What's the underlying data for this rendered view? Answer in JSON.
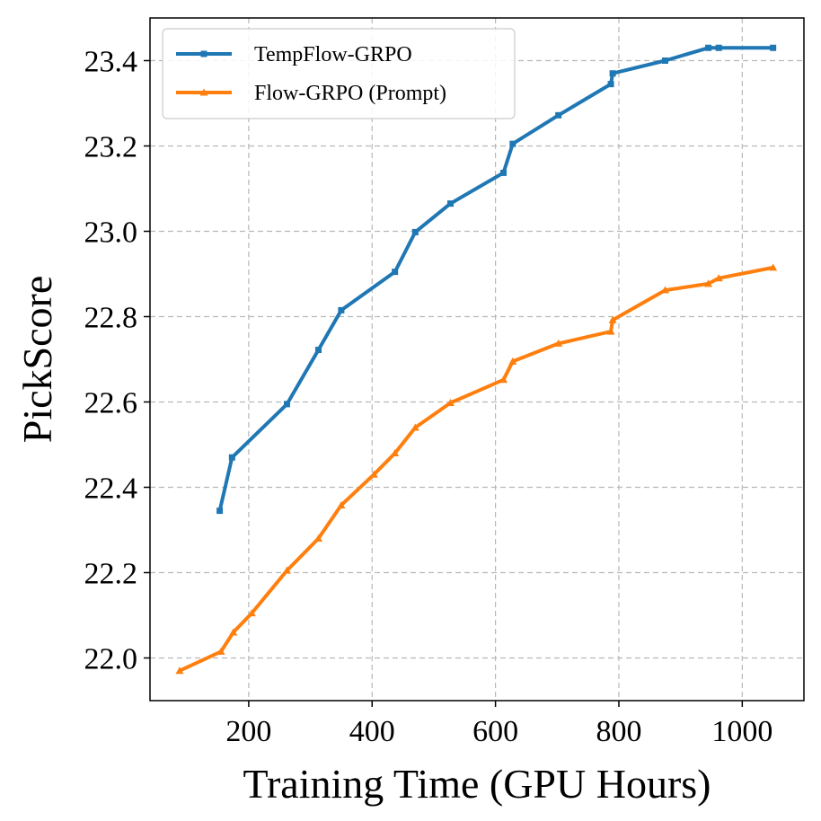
{
  "chart_data": {
    "type": "line",
    "title": "",
    "xlabel": "Training Time (GPU Hours)",
    "ylabel": "PickScore",
    "xlim": [
      40,
      1100
    ],
    "ylim": [
      21.9,
      23.5
    ],
    "xticks": [
      200,
      400,
      600,
      800,
      1000
    ],
    "yticks": [
      22.0,
      22.2,
      22.4,
      22.6,
      22.8,
      23.0,
      23.2,
      23.4
    ],
    "xtick_labels": [
      "200",
      "400",
      "600",
      "800",
      "1000"
    ],
    "ytick_labels": [
      "22.0",
      "22.2",
      "22.4",
      "22.6",
      "22.8",
      "23.0",
      "23.2",
      "23.4"
    ],
    "grid": true,
    "legend_position": "top-left",
    "series": [
      {
        "name": "TempFlow-GRPO",
        "color": "#1f77b4",
        "marker": "square",
        "x": [
          153,
          173,
          262,
          313,
          350,
          437,
          470,
          527,
          613,
          628,
          702,
          787,
          790,
          875,
          945,
          962,
          1050
        ],
        "y": [
          22.345,
          22.47,
          22.595,
          22.722,
          22.815,
          22.905,
          22.998,
          23.065,
          23.137,
          23.205,
          23.272,
          23.345,
          23.37,
          23.4,
          23.43,
          23.43,
          23.43
        ]
      },
      {
        "name": "Flow-GRPO (Prompt)",
        "color": "#ff7f0e",
        "marker": "triangle",
        "x": [
          88,
          155,
          175,
          205,
          262,
          313,
          350,
          403,
          437,
          470,
          527,
          613,
          628,
          702,
          787,
          790,
          875,
          945,
          962,
          1050
        ],
        "y": [
          21.97,
          22.015,
          22.06,
          22.105,
          22.205,
          22.28,
          22.358,
          22.43,
          22.48,
          22.54,
          22.598,
          22.652,
          22.695,
          22.737,
          22.765,
          22.792,
          22.862,
          22.877,
          22.89,
          22.915
        ]
      }
    ]
  }
}
